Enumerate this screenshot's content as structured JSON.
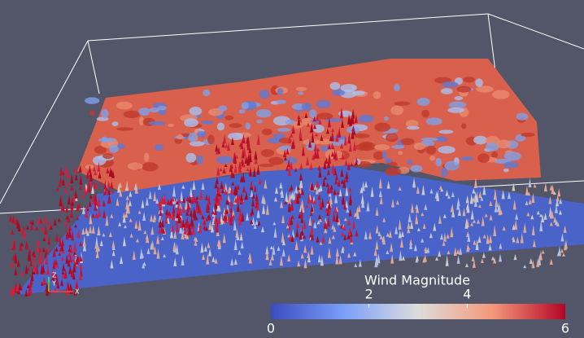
{
  "colorbar": {
    "title": "Wind Magnitude",
    "range_labels": [
      0,
      6
    ],
    "ticks": [
      2,
      4
    ]
  },
  "axes_glyph": {
    "labels": [
      "Z",
      "Y",
      "X"
    ]
  }
}
